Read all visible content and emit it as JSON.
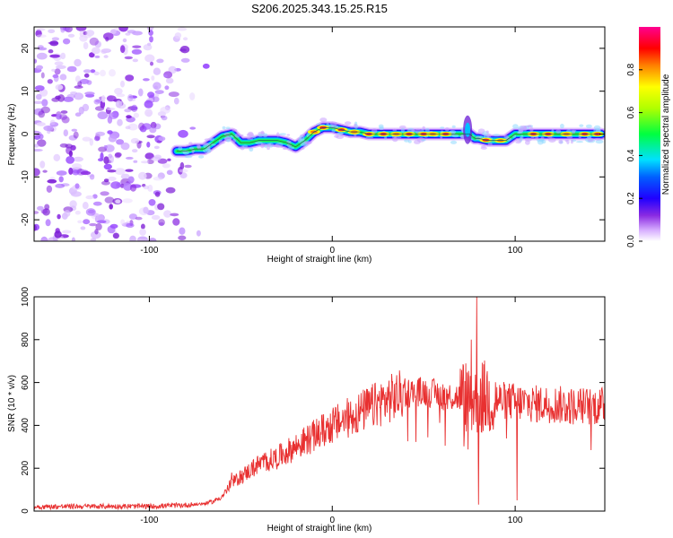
{
  "title": "S206.2025.343.15.25.R15",
  "chart_data": [
    {
      "type": "heatmap",
      "xlabel": "Height of straight line (km)",
      "ylabel": "Frequency (Hz)",
      "xlim": [
        -163,
        149
      ],
      "ylim": [
        -25,
        25
      ],
      "x_ticks": [
        -100,
        0,
        100
      ],
      "y_ticks": [
        -20,
        -10,
        0,
        10,
        20
      ],
      "colorbar": {
        "label": "Normalized spectral amplitude",
        "range": [
          0,
          1
        ],
        "ticks": [
          0.0,
          0.2,
          0.4,
          0.6,
          0.8
        ],
        "colors": [
          "#ffffff",
          "#c77dff",
          "#7a00d6",
          "#0000ff",
          "#00c8ff",
          "#00ff00",
          "#ffff00",
          "#ff8000",
          "#ff0000",
          "#ff0090"
        ]
      },
      "ridge": {
        "x": [
          -85,
          -80,
          -75,
          -70,
          -65,
          -60,
          -55,
          -50,
          -45,
          -40,
          -35,
          -30,
          -25,
          -20,
          -15,
          -10,
          -5,
          0,
          5,
          10,
          15,
          20,
          30,
          40,
          50,
          60,
          65,
          70,
          73,
          75,
          78,
          80,
          85,
          90,
          95,
          100,
          110,
          120,
          130,
          140,
          147
        ],
        "y": [
          -4,
          -4,
          -3.5,
          -3.5,
          -2,
          -0.5,
          0,
          -2,
          -2,
          -1.5,
          -1.5,
          -1.5,
          -2,
          -3,
          -1.5,
          0.5,
          1.5,
          1.5,
          1,
          0.5,
          0.5,
          0,
          0,
          0,
          0,
          0,
          0,
          0,
          0,
          0,
          -1,
          -1,
          -1.5,
          -1.5,
          -1.5,
          0,
          0,
          0,
          0,
          0,
          0
        ]
      }
    },
    {
      "type": "line",
      "xlabel": "Height of straight line (km)",
      "ylabel": "SNR (10 * v/v)",
      "xlim": [
        -163,
        149
      ],
      "ylim": [
        0,
        1000
      ],
      "x_ticks": [
        -100,
        0,
        100
      ],
      "y_ticks": [
        0,
        200,
        400,
        600,
        800,
        1000
      ],
      "line_color": "#e83030",
      "series": [
        {
          "name": "SNR",
          "trend_x": [
            -163,
            -140,
            -120,
            -100,
            -90,
            -80,
            -70,
            -65,
            -60,
            -55,
            -50,
            -40,
            -30,
            -20,
            -10,
            0,
            10,
            20,
            30,
            40,
            50,
            60,
            70,
            75,
            80,
            85,
            90,
            100,
            110,
            120,
            130,
            140,
            149
          ],
          "trend_y": [
            20,
            22,
            22,
            22,
            25,
            28,
            35,
            45,
            70,
            130,
            160,
            220,
            250,
            300,
            350,
            400,
            440,
            480,
            520,
            550,
            560,
            540,
            530,
            530,
            530,
            530,
            520,
            510,
            500,
            500,
            490,
            490,
            490
          ],
          "notable_points": [
            {
              "x": 79,
              "y": 1000
            },
            {
              "x": 76,
              "y": 800
            },
            {
              "x": 80,
              "y": 30
            },
            {
              "x": 101,
              "y": 50
            },
            {
              "x": -55,
              "y": 180
            }
          ]
        }
      ]
    }
  ]
}
